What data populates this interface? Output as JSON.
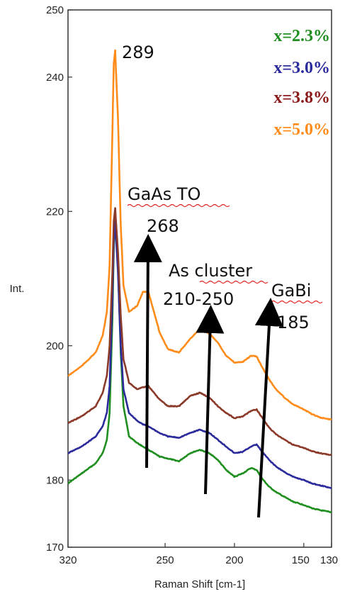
{
  "chart_data": {
    "type": "line",
    "title": "",
    "xlabel": "Raman Shift [cm-1]",
    "ylabel": "Int.",
    "xlim": [
      320,
      130
    ],
    "ylim": [
      170,
      250
    ],
    "x_reversed": true,
    "xticks": [
      {
        "value": 320,
        "label": "320"
      },
      {
        "value": 250,
        "label": "250"
      },
      {
        "value": 200,
        "label": "200"
      },
      {
        "value": 150,
        "label": "150"
      },
      {
        "value": 130,
        "label": "130"
      }
    ],
    "yticks": [
      {
        "value": 170,
        "label": "170"
      },
      {
        "value": 180,
        "label": "180"
      },
      {
        "value": 200,
        "label": "200"
      },
      {
        "value": 220,
        "label": "220"
      },
      {
        "value": 240,
        "label": "240"
      },
      {
        "value": 250,
        "label": "250"
      }
    ],
    "grid": false,
    "legend_position": "top-right",
    "series": [
      {
        "name": "x=2.3%",
        "color": "#1f8f1f",
        "x": [
          320,
          310,
          300,
          295,
          292,
          290,
          288,
          287,
          286,
          284,
          282,
          280,
          276,
          270,
          266,
          262,
          258,
          254,
          248,
          240,
          232,
          225,
          218,
          212,
          206,
          200,
          194,
          188,
          184,
          180,
          175,
          170,
          164,
          158,
          150,
          144,
          138,
          130
        ],
        "y": [
          179.5,
          181.0,
          182.5,
          184.0,
          186.0,
          190.0,
          204.0,
          214.5,
          219.0,
          212.0,
          199.0,
          191.0,
          186.5,
          185.5,
          185.0,
          184.5,
          184.0,
          183.5,
          183.2,
          182.8,
          184.0,
          184.5,
          184.0,
          183.0,
          181.5,
          180.5,
          181.0,
          181.8,
          181.5,
          180.2,
          179.0,
          178.2,
          177.5,
          176.8,
          176.3,
          175.8,
          175.5,
          175.2
        ]
      },
      {
        "name": "x=3.0%",
        "color": "#2b2b9b",
        "x": [
          320,
          310,
          300,
          295,
          292,
          290,
          288,
          287,
          286,
          284,
          282,
          280,
          276,
          270,
          266,
          262,
          258,
          254,
          248,
          240,
          232,
          225,
          218,
          212,
          206,
          200,
          194,
          188,
          184,
          180,
          175,
          170,
          164,
          158,
          150,
          144,
          138,
          130
        ],
        "y": [
          184.0,
          185.0,
          186.5,
          188.0,
          190.0,
          194.0,
          207.0,
          215.5,
          218.5,
          211.0,
          200.0,
          193.5,
          190.0,
          188.8,
          188.3,
          188.0,
          187.5,
          187.0,
          186.5,
          186.3,
          187.0,
          187.5,
          187.0,
          186.0,
          185.0,
          184.0,
          184.2,
          185.0,
          185.3,
          184.2,
          183.0,
          182.0,
          181.2,
          180.5,
          180.0,
          179.5,
          179.2,
          178.8
        ]
      },
      {
        "name": "x=3.8%",
        "color": "#8b3a2a",
        "x": [
          320,
          310,
          300,
          295,
          292,
          290,
          288,
          287,
          286,
          284,
          282,
          280,
          276,
          270,
          266,
          262,
          258,
          254,
          248,
          240,
          232,
          225,
          218,
          212,
          206,
          200,
          194,
          188,
          184,
          180,
          175,
          170,
          164,
          158,
          150,
          144,
          138,
          130
        ],
        "y": [
          188.5,
          189.5,
          191.0,
          193.0,
          195.5,
          200.0,
          211.0,
          218.5,
          220.5,
          214.0,
          204.5,
          198.0,
          194.5,
          193.5,
          193.8,
          194.0,
          193.0,
          192.0,
          191.0,
          191.0,
          192.5,
          193.0,
          192.3,
          191.0,
          190.0,
          189.2,
          189.5,
          190.3,
          190.5,
          189.3,
          187.8,
          186.8,
          186.0,
          185.3,
          184.8,
          184.3,
          184.0,
          183.7
        ]
      },
      {
        "name": "x=5.0%",
        "color": "#ff8c1a",
        "x": [
          320,
          310,
          300,
          295,
          292,
          290,
          288,
          287,
          286,
          284,
          282,
          280,
          276,
          270,
          266,
          262,
          258,
          254,
          248,
          240,
          232,
          225,
          218,
          212,
          206,
          200,
          194,
          188,
          184,
          180,
          175,
          170,
          164,
          158,
          150,
          144,
          138,
          130
        ],
        "y": [
          195.5,
          197.0,
          199.0,
          201.5,
          205.0,
          212.0,
          232.0,
          242.0,
          244.0,
          234.0,
          218.0,
          209.0,
          205.0,
          206.0,
          208.0,
          208.0,
          205.0,
          202.0,
          199.5,
          199.0,
          201.0,
          202.5,
          201.8,
          200.5,
          198.5,
          197.5,
          197.6,
          198.5,
          198.4,
          196.8,
          195.0,
          193.5,
          192.3,
          191.3,
          190.5,
          189.8,
          189.3,
          189.0
        ]
      }
    ],
    "annotations": {
      "peak_label": "289",
      "gaas_to_name": "GaAs TO",
      "gaas_to_value": "268",
      "as_cluster_name": "As cluster",
      "as_cluster_value": "210-250",
      "gabi_name": "GaBi",
      "gabi_value": "185"
    }
  }
}
